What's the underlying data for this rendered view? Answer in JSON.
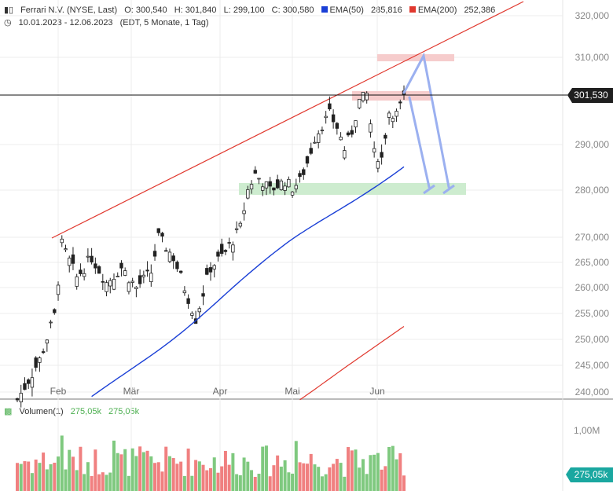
{
  "header": {
    "title": "Ferrari N.V. (NYSE, Last)",
    "open": "O: 300,540",
    "high": "H: 301,840",
    "low": "L: 299,100",
    "close": "C: 300,580",
    "ema50_label": "EMA(50)",
    "ema50_value": "285,816",
    "ema200_label": "EMA(200)",
    "ema200_value": "252,386",
    "date_range": "10.01.2023 - 12.06.2023",
    "meta": "(EDT, 5 Monate, 1 Tag)",
    "volume_label": "Volumen(1)",
    "volume_value1": "275,05k",
    "volume_value2": "275,05k"
  },
  "colors": {
    "up": "#222222",
    "down": "#222222",
    "ema50": "#1a3fd6",
    "ema200": "#e0382e",
    "trend": "#e0382e",
    "vol_up": "#7fc97f",
    "vol_down": "#f08080",
    "support_zone": "#cdeccf",
    "resistance_zone": "#f6cccc",
    "arrow": "#9bb0f0",
    "badge": "#1f1f1f",
    "vol_badge": "#1aa7a0"
  },
  "chart_data": {
    "type": "candlestick",
    "ylim": [
      238000,
      323000
    ],
    "y_ticks": [
      240000,
      245000,
      250000,
      255000,
      260000,
      265000,
      270000,
      280000,
      290000,
      310000,
      320000
    ],
    "y_tick_labels": [
      "240,000",
      "245,000",
      "250,000",
      "255,000",
      "260,000",
      "265,000",
      "270,000",
      "280,000",
      "290,000",
      "310,000",
      "320,000"
    ],
    "x_month_labels": [
      "Feb",
      "Mär",
      "Apr",
      "Mai",
      "Jun"
    ],
    "current_price_label": "301,530",
    "volume_tick_label": "1,00M",
    "volume_badge_label": "275,05k"
  }
}
